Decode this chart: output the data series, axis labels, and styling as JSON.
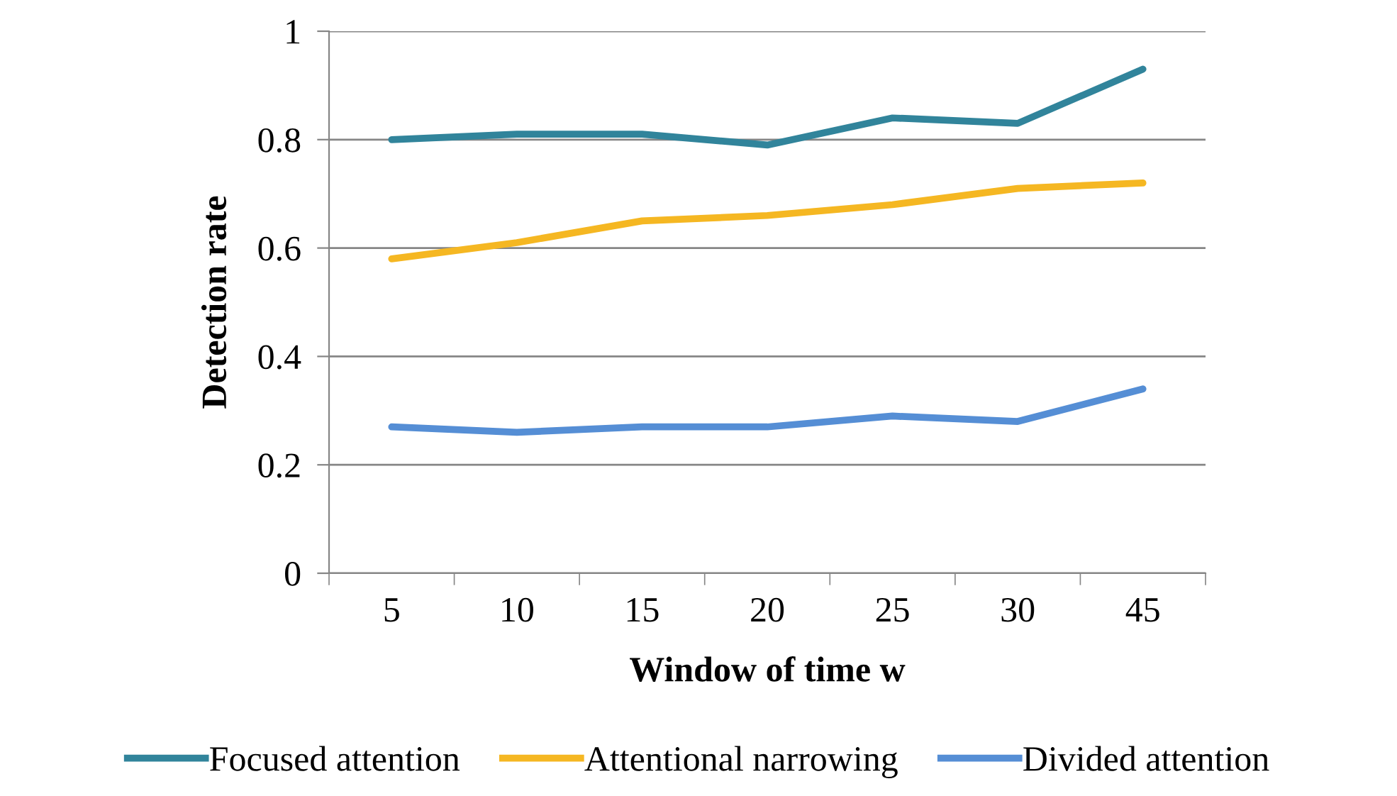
{
  "chart_data": {
    "type": "line",
    "xlabel": "Window of time w",
    "ylabel": "Detection rate",
    "categories": [
      "5",
      "10",
      "15",
      "20",
      "25",
      "30",
      "45"
    ],
    "series": [
      {
        "name": "Focused attention",
        "color": "#31849b",
        "values": [
          0.8,
          0.81,
          0.81,
          0.79,
          0.84,
          0.83,
          0.93
        ]
      },
      {
        "name": "Attentional narrowing",
        "color": "#f5b722",
        "values": [
          0.58,
          0.61,
          0.65,
          0.66,
          0.68,
          0.71,
          0.72
        ]
      },
      {
        "name": "Divided attention",
        "color": "#558ed5",
        "values": [
          0.27,
          0.26,
          0.27,
          0.27,
          0.29,
          0.28,
          0.34
        ]
      }
    ],
    "ylim": [
      0,
      1
    ],
    "yticks": [
      0,
      0.2,
      0.4,
      0.6,
      0.8,
      1
    ],
    "grid": "y",
    "legend": "bottom",
    "marker": "none",
    "line_style": "solid"
  }
}
